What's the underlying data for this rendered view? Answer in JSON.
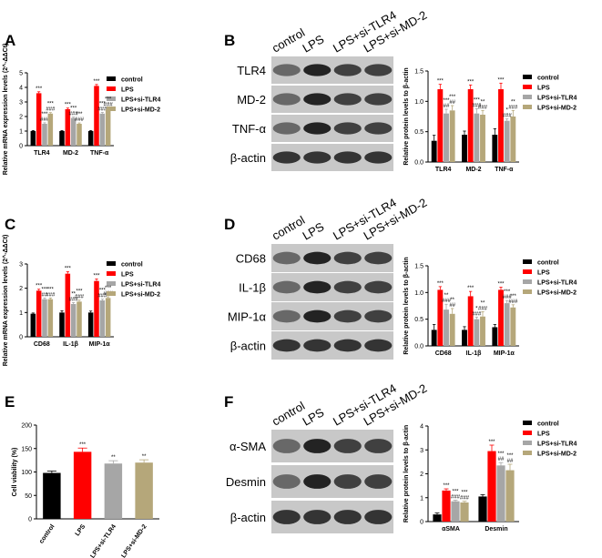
{
  "chart_data": [
    {
      "type": "bar",
      "label": "A",
      "ylabel": "Relative mRNA expression levels (2^-ΔΔCt)",
      "categories": [
        "TLR4",
        "MD-2",
        "TNF-α"
      ],
      "ylim": [
        0,
        5
      ],
      "yticks": [
        0,
        1,
        2,
        3,
        4,
        5
      ],
      "series": [
        {
          "name": "control",
          "color": "#000000",
          "values": [
            1,
            1,
            1
          ],
          "errors": [
            0.04,
            0.04,
            0.04
          ],
          "annotations": [
            null,
            null,
            null
          ]
        },
        {
          "name": "LPS",
          "color": "#ff0000",
          "values": [
            3.6,
            2.5,
            4.1
          ],
          "errors": [
            0.1,
            0.08,
            0.1
          ],
          "annotations": [
            [
              "***"
            ],
            [
              "***"
            ],
            [
              "***"
            ]
          ]
        },
        {
          "name": "LPS+si-TLR4",
          "color": "#a6a6a6",
          "values": [
            1.5,
            1.9,
            2.2
          ],
          "errors": [
            0.07,
            0.06,
            0.08
          ],
          "annotations": [
            [
              "***",
              "###"
            ],
            [
              "***",
              "###"
            ],
            [
              "***",
              "###"
            ]
          ]
        },
        {
          "name": "LPS+si-MD-2",
          "color": "#b5a77a",
          "values": [
            2.2,
            1.5,
            2.5
          ],
          "errors": [
            0.07,
            0.06,
            0.08
          ],
          "annotations": [
            [
              "***",
              "###"
            ],
            [
              "***",
              "###"
            ],
            [
              "***",
              "###"
            ]
          ]
        }
      ]
    },
    {
      "type": "bar",
      "ylabel": "Relative protein levels to β-actin",
      "categories": [
        "TLR4",
        "MD-2",
        "TNF-α"
      ],
      "ylim": [
        0,
        1.5
      ],
      "yticks": [
        {
          "value": 0,
          "label": "0.0"
        },
        0.5,
        {
          "value": 1,
          "label": "1.0"
        },
        1.5
      ],
      "series": [
        {
          "name": "control",
          "color": "#000000",
          "values": [
            0.35,
            0.45,
            0.45
          ],
          "errors": [
            0.09,
            0.06,
            0.1
          ],
          "annotations": [
            null,
            null,
            null
          ]
        },
        {
          "name": "LPS",
          "color": "#ff0000",
          "values": [
            1.2,
            1.2,
            1.2
          ],
          "errors": [
            0.08,
            0.07,
            0.1
          ],
          "annotations": [
            [
              "***"
            ],
            [
              "***"
            ],
            [
              "***"
            ]
          ]
        },
        {
          "name": "LPS+si-TLR4",
          "color": "#a6a6a6",
          "values": [
            0.8,
            0.8,
            0.68
          ],
          "errors": [
            0.07,
            0.08,
            0.03
          ],
          "annotations": [
            [
              "***",
              "##"
            ],
            [
              "***",
              "###"
            ],
            [
              "*",
              "###"
            ]
          ]
        },
        {
          "name": "LPS+si-MD-2",
          "color": "#b5a77a",
          "values": [
            0.85,
            0.78,
            0.75
          ],
          "errors": [
            0.08,
            0.07,
            0.1
          ],
          "annotations": [
            [
              "***",
              "##"
            ],
            [
              "**",
              "###"
            ],
            [
              "**",
              "###"
            ]
          ]
        }
      ]
    },
    {
      "type": "bar",
      "label": "C",
      "ylabel": "Relative mRNA expression levels (2^-ΔΔCt)",
      "categories": [
        "CD68",
        "IL-1β",
        "MIP-1α"
      ],
      "ylim": [
        0,
        3
      ],
      "yticks": [
        0,
        1,
        2,
        3
      ],
      "series": [
        {
          "name": "control",
          "color": "#000000",
          "values": [
            0.95,
            1,
            1
          ],
          "errors": [
            0.03,
            0.07,
            0.06
          ],
          "annotations": [
            null,
            null,
            null
          ]
        },
        {
          "name": "LPS",
          "color": "#ff0000",
          "values": [
            1.9,
            2.6,
            2.3
          ],
          "errors": [
            0.06,
            0.08,
            0.08
          ],
          "annotations": [
            [
              "***"
            ],
            [
              "***"
            ],
            [
              "***"
            ]
          ]
        },
        {
          "name": "LPS+si-TLR4",
          "color": "#a6a6a6",
          "values": [
            1.55,
            1.35,
            1.5
          ],
          "errors": [
            0.05,
            0.06,
            0.05
          ],
          "annotations": [
            [
              "***",
              "##"
            ],
            [
              "**",
              "###"
            ],
            [
              "***",
              "###"
            ]
          ]
        },
        {
          "name": "LPS+si-MD-2",
          "color": "#b5a77a",
          "values": [
            1.55,
            1.45,
            1.6
          ],
          "errors": [
            0.05,
            0.06,
            0.05
          ],
          "annotations": [
            [
              "***",
              "###"
            ],
            [
              "***",
              "###"
            ],
            [
              "***",
              "###"
            ]
          ]
        }
      ]
    },
    {
      "type": "bar",
      "ylabel": "Relative protein levels to β-actin",
      "categories": [
        "CD68",
        "IL-1β",
        "MIP-1α"
      ],
      "ylim": [
        0,
        1.5
      ],
      "yticks": [
        {
          "value": 0,
          "label": "0.0"
        },
        0.5,
        {
          "value": 1,
          "label": "1.0"
        },
        1.5
      ],
      "series": [
        {
          "name": "control",
          "color": "#000000",
          "values": [
            0.3,
            0.3,
            0.35
          ],
          "errors": [
            0.1,
            0.06,
            0.05
          ],
          "annotations": [
            null,
            null,
            null
          ]
        },
        {
          "name": "LPS",
          "color": "#ff0000",
          "values": [
            1.05,
            0.93,
            1.05
          ],
          "errors": [
            0.06,
            0.09,
            0.05
          ],
          "annotations": [
            [
              "***"
            ],
            [
              "***"
            ],
            [
              "***"
            ]
          ]
        },
        {
          "name": "LPS+si-TLR4",
          "color": "#a6a6a6",
          "values": [
            0.68,
            0.5,
            0.8
          ],
          "errors": [
            0.1,
            0.04,
            0.05
          ],
          "annotations": [
            [
              "**",
              "###"
            ],
            [
              "*",
              "###"
            ],
            [
              "***",
              "###"
            ]
          ]
        },
        {
          "name": "LPS+si-MD-2",
          "color": "#b5a77a",
          "values": [
            0.6,
            0.55,
            0.72
          ],
          "errors": [
            0.1,
            0.09,
            0.05
          ],
          "annotations": [
            [
              "**",
              "##"
            ],
            [
              "**",
              "###"
            ],
            [
              "***",
              "###"
            ]
          ]
        }
      ]
    },
    {
      "type": "bar",
      "label": "E",
      "ylabel": "Cell viability (%)",
      "categories": [
        "control",
        "LPS",
        "LPS+si-TLR4",
        "LPS+si-MD-2"
      ],
      "ylim": [
        0,
        200
      ],
      "yticks": [
        0,
        50,
        100,
        150,
        200
      ],
      "series": [
        {
          "colors": [
            "#000000",
            "#ff0000",
            "#a6a6a6",
            "#b5a77a"
          ],
          "values": [
            98,
            143,
            118,
            120
          ],
          "errors": [
            4,
            8,
            6,
            6
          ],
          "annotations": [
            null,
            [
              "***"
            ],
            [
              "**"
            ],
            [
              "**"
            ]
          ]
        }
      ]
    },
    {
      "type": "bar",
      "ylabel": "Relative protein levels to β-actin",
      "categories": [
        "αSMA",
        "Desmin"
      ],
      "ylim": [
        0,
        4
      ],
      "yticks": [
        0,
        1,
        2,
        3,
        4
      ],
      "series": [
        {
          "name": "control",
          "color": "#000000",
          "values": [
            0.3,
            1.05
          ],
          "errors": [
            0.06,
            0.08
          ],
          "annotations": [
            null,
            null
          ]
        },
        {
          "name": "LPS",
          "color": "#ff0000",
          "values": [
            1.3,
            2.95
          ],
          "errors": [
            0.07,
            0.25
          ],
          "annotations": [
            [
              "***"
            ],
            [
              "***"
            ]
          ]
        },
        {
          "name": "LPS+si-TLR4",
          "color": "#a6a6a6",
          "values": [
            0.85,
            2.35
          ],
          "errors": [
            0.05,
            0.12
          ],
          "annotations": [
            [
              "***",
              "###"
            ],
            [
              "***",
              "##"
            ]
          ]
        },
        {
          "name": "LPS+si-MD-2",
          "color": "#b5a77a",
          "values": [
            0.8,
            2.15
          ],
          "errors": [
            0.05,
            0.25
          ],
          "annotations": [
            [
              "***",
              "###"
            ],
            [
              "***",
              "##"
            ]
          ]
        }
      ]
    }
  ],
  "blots": [
    {
      "label": "B",
      "lanes": [
        "control",
        "LPS",
        "LPS+si-TLR4",
        "LPS+si-MD-2"
      ],
      "rows": [
        "TLR4",
        "MD-2",
        "TNF-α",
        "β-actin"
      ]
    },
    {
      "label": "D",
      "lanes": [
        "control",
        "LPS",
        "LPS+si-TLR4",
        "LPS+si-MD-2"
      ],
      "rows": [
        "CD68",
        "IL-1β",
        "MIP-1α",
        "β-actin"
      ]
    },
    {
      "label": "F",
      "lanes": [
        "control",
        "LPS",
        "LPS+si-TLR4",
        "LPS+si-MD-2"
      ],
      "rows": [
        "α-SMA",
        "Desmin",
        "β-actin"
      ]
    }
  ]
}
